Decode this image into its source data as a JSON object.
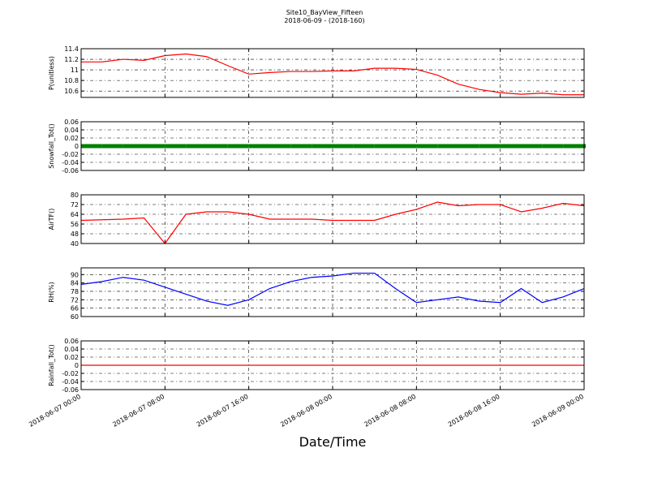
{
  "title": "Site10_BayView_Fifteen",
  "subtitle": "2018-06-09 - (2018-160)",
  "xlabel": "Date/Time",
  "xlim": [
    "2018-06-07 00:00",
    "2018-06-09 00:00"
  ],
  "xticks": [
    "2018-06-07 00:00",
    "2018-06-07 08:00",
    "2018-06-07 16:00",
    "2018-06-08 00:00",
    "2018-06-08 08:00",
    "2018-06-08 16:00",
    "2018-06-09 00:00"
  ],
  "grid": true,
  "chart_data": [
    {
      "type": "line",
      "ylabel": "P(unitless)",
      "color": "#ff0000",
      "x": [
        "2018-06-07 00:00",
        "2018-06-07 02:00",
        "2018-06-07 04:00",
        "2018-06-07 06:00",
        "2018-06-07 08:00",
        "2018-06-07 10:00",
        "2018-06-07 12:00",
        "2018-06-07 14:00",
        "2018-06-07 16:00",
        "2018-06-07 18:00",
        "2018-06-07 20:00",
        "2018-06-07 22:00",
        "2018-06-08 00:00",
        "2018-06-08 02:00",
        "2018-06-08 04:00",
        "2018-06-08 06:00",
        "2018-06-08 08:00",
        "2018-06-08 10:00",
        "2018-06-08 12:00",
        "2018-06-08 14:00",
        "2018-06-08 16:00",
        "2018-06-08 18:00",
        "2018-06-08 20:00",
        "2018-06-08 22:00",
        "2018-06-09 00:00"
      ],
      "values": [
        11.15,
        11.15,
        11.2,
        11.18,
        11.27,
        11.3,
        11.25,
        11.08,
        10.92,
        10.95,
        10.97,
        10.97,
        10.98,
        10.98,
        11.03,
        11.03,
        11.01,
        10.9,
        10.73,
        10.63,
        10.57,
        10.54,
        10.56,
        10.53,
        10.53
      ],
      "ylim": [
        10.48,
        11.4
      ],
      "yticks": [
        10.6,
        10.8,
        11.0,
        11.2,
        11.4
      ]
    },
    {
      "type": "scatter",
      "ylabel": "Snowfall_Tot()",
      "color": "#008000",
      "x": [
        "2018-06-07 00:00",
        "2018-06-07 02:00",
        "2018-06-07 04:00",
        "2018-06-07 06:00",
        "2018-06-07 08:00",
        "2018-06-07 10:00",
        "2018-06-07 12:00",
        "2018-06-07 14:00",
        "2018-06-07 16:00",
        "2018-06-07 18:00",
        "2018-06-07 20:00",
        "2018-06-07 22:00",
        "2018-06-08 00:00",
        "2018-06-08 02:00",
        "2018-06-08 04:00",
        "2018-06-08 06:00",
        "2018-06-08 08:00",
        "2018-06-08 10:00",
        "2018-06-08 12:00",
        "2018-06-08 14:00",
        "2018-06-08 16:00",
        "2018-06-08 18:00",
        "2018-06-08 20:00",
        "2018-06-08 22:00",
        "2018-06-09 00:00"
      ],
      "values": [
        0,
        0,
        0,
        0,
        0,
        0,
        0,
        0,
        0,
        0,
        0,
        0,
        0,
        0,
        0,
        0,
        0,
        0,
        0,
        0,
        0,
        0,
        0,
        0,
        0
      ],
      "ylim": [
        -0.06,
        0.06
      ],
      "yticks": [
        -0.06,
        -0.04,
        -0.02,
        0.0,
        0.02,
        0.04,
        0.06
      ]
    },
    {
      "type": "line",
      "ylabel": "AirTF()",
      "color": "#ff0000",
      "x": [
        "2018-06-07 00:00",
        "2018-06-07 02:00",
        "2018-06-07 04:00",
        "2018-06-07 06:00",
        "2018-06-07 08:00",
        "2018-06-07 10:00",
        "2018-06-07 12:00",
        "2018-06-07 14:00",
        "2018-06-07 16:00",
        "2018-06-07 18:00",
        "2018-06-07 20:00",
        "2018-06-07 22:00",
        "2018-06-08 00:00",
        "2018-06-08 02:00",
        "2018-06-08 04:00",
        "2018-06-08 06:00",
        "2018-06-08 08:00",
        "2018-06-08 10:00",
        "2018-06-08 12:00",
        "2018-06-08 14:00",
        "2018-06-08 16:00",
        "2018-06-08 18:00",
        "2018-06-08 20:00",
        "2018-06-08 22:00",
        "2018-06-09 00:00"
      ],
      "values": [
        59,
        59.5,
        60,
        61,
        40,
        64,
        66,
        66,
        64,
        60,
        60,
        60,
        59,
        59,
        59,
        64,
        68,
        74,
        71,
        72,
        72,
        66,
        69,
        73,
        71
      ],
      "ylim": [
        40,
        80
      ],
      "yticks": [
        40,
        48,
        56,
        64,
        72,
        80
      ]
    },
    {
      "type": "line",
      "ylabel": "RH(%)",
      "color": "#0000ff",
      "x": [
        "2018-06-07 00:00",
        "2018-06-07 02:00",
        "2018-06-07 04:00",
        "2018-06-07 06:00",
        "2018-06-07 08:00",
        "2018-06-07 10:00",
        "2018-06-07 12:00",
        "2018-06-07 14:00",
        "2018-06-07 16:00",
        "2018-06-07 18:00",
        "2018-06-07 20:00",
        "2018-06-07 22:00",
        "2018-06-08 00:00",
        "2018-06-08 02:00",
        "2018-06-08 04:00",
        "2018-06-08 06:00",
        "2018-06-08 08:00",
        "2018-06-08 10:00",
        "2018-06-08 12:00",
        "2018-06-08 14:00",
        "2018-06-08 16:00",
        "2018-06-08 18:00",
        "2018-06-08 20:00",
        "2018-06-08 22:00",
        "2018-06-09 00:00"
      ],
      "values": [
        83,
        85,
        88,
        86,
        81,
        76,
        71,
        68,
        72,
        80,
        85,
        88,
        89,
        91,
        91,
        80,
        70,
        72,
        74,
        71,
        70,
        80,
        70,
        74,
        80
      ],
      "ylim": [
        60,
        94.8
      ],
      "yticks": [
        60,
        66,
        72,
        78,
        84,
        90
      ]
    },
    {
      "type": "line",
      "ylabel": "Rainfall_Tot()",
      "color": "#ff0000",
      "x": [
        "2018-06-07 00:00",
        "2018-06-07 02:00",
        "2018-06-07 04:00",
        "2018-06-07 06:00",
        "2018-06-07 08:00",
        "2018-06-07 10:00",
        "2018-06-07 12:00",
        "2018-06-07 14:00",
        "2018-06-07 16:00",
        "2018-06-07 18:00",
        "2018-06-07 20:00",
        "2018-06-07 22:00",
        "2018-06-08 00:00",
        "2018-06-08 02:00",
        "2018-06-08 04:00",
        "2018-06-08 06:00",
        "2018-06-08 08:00",
        "2018-06-08 10:00",
        "2018-06-08 12:00",
        "2018-06-08 14:00",
        "2018-06-08 16:00",
        "2018-06-08 18:00",
        "2018-06-08 20:00",
        "2018-06-08 22:00",
        "2018-06-09 00:00"
      ],
      "values": [
        0,
        0,
        0,
        0,
        0,
        0,
        0,
        0,
        0,
        0,
        0,
        0,
        0,
        0,
        0,
        0,
        0,
        0,
        0,
        0,
        0,
        0,
        0,
        0,
        0
      ],
      "ylim": [
        -0.06,
        0.06
      ],
      "yticks": [
        -0.06,
        -0.04,
        -0.02,
        0.0,
        0.02,
        0.04,
        0.06
      ]
    }
  ]
}
